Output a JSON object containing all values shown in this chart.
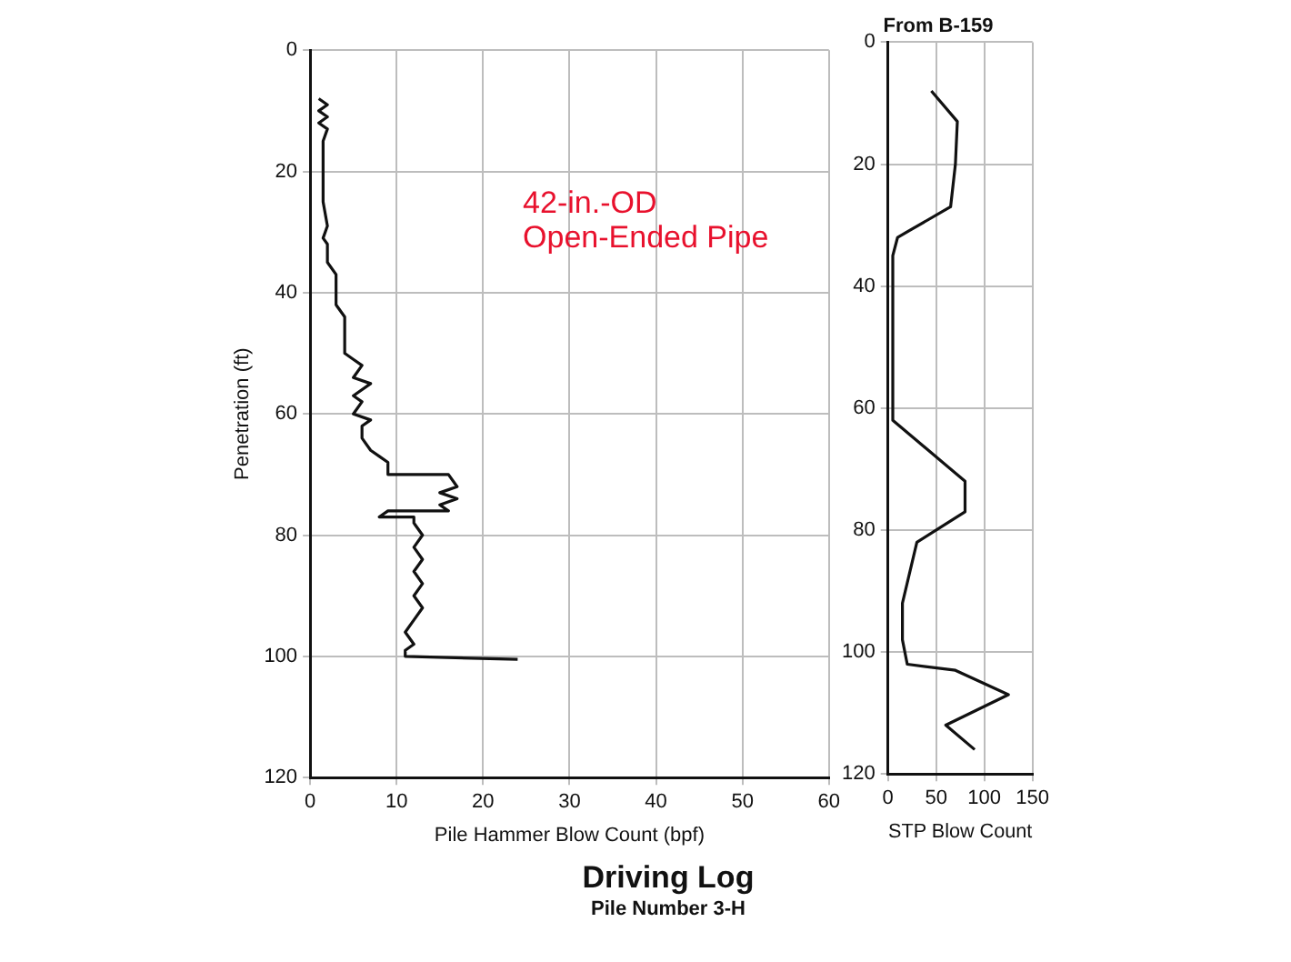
{
  "chart_data": [
    {
      "type": "line",
      "title": "Driving Log",
      "subtitle": "Pile Number 3-H",
      "xlabel": "Pile Hammer Blow Count (bpf)",
      "ylabel": "Penetration (ft)",
      "annotations": [
        "42-in.-OD",
        "Open-Ended Pipe"
      ],
      "xlim": [
        0,
        60
      ],
      "xticks": [
        0,
        10,
        20,
        30,
        40,
        50,
        60
      ],
      "ylim": [
        120,
        0
      ],
      "yticks": [
        0,
        20,
        40,
        60,
        80,
        100,
        120
      ],
      "grid": true,
      "marker": "none",
      "series": [
        {
          "color": "#111111",
          "x": [
            1,
            2,
            1,
            2,
            1,
            2,
            1.5,
            1.5,
            2,
            1.5,
            2,
            2,
            3,
            3,
            4,
            4,
            5,
            6,
            5,
            7,
            5,
            6,
            5,
            7,
            6,
            6,
            7,
            8,
            9,
            9,
            16,
            17,
            15,
            17,
            15,
            16,
            9,
            8,
            12,
            12,
            13,
            12,
            13,
            12,
            13,
            12,
            13,
            12,
            11,
            12,
            11,
            11,
            24
          ],
          "values": [
            8,
            9,
            10,
            11,
            12,
            13,
            15,
            25,
            29,
            31,
            32,
            35,
            37,
            42,
            44,
            50,
            51,
            52,
            54,
            55,
            57,
            58,
            60,
            61,
            62,
            64,
            66,
            67,
            68,
            70,
            70,
            72,
            73,
            74,
            75,
            76,
            76,
            77,
            77,
            78,
            80,
            82,
            84,
            86,
            88,
            90,
            92,
            94,
            96,
            98,
            99,
            100,
            100.5
          ]
        }
      ]
    },
    {
      "type": "line",
      "title": "From B-159",
      "xlabel": "STP Blow Count",
      "xlim": [
        0,
        150
      ],
      "xticks": [
        0,
        50,
        100,
        150
      ],
      "ylim": [
        120,
        0
      ],
      "yticks": [
        0,
        20,
        40,
        60,
        80,
        100,
        120
      ],
      "grid": true,
      "marker": "none",
      "series": [
        {
          "color": "#111111",
          "x": [
            45,
            72,
            70,
            65,
            10,
            5,
            5,
            80,
            80,
            30,
            15,
            15,
            20,
            70,
            125,
            60,
            90
          ],
          "values": [
            8,
            13,
            20,
            27,
            32,
            35,
            62,
            72,
            77,
            82,
            92,
            98,
            102,
            103,
            107,
            112,
            116
          ]
        }
      ]
    }
  ]
}
